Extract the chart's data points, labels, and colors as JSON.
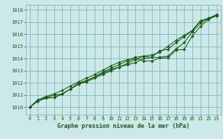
{
  "title": "Graphe pression niveau de la mer (hPa)",
  "bg_color": "#cce8e8",
  "grid_color": "#88bbbb",
  "line_color": "#1a5c1a",
  "marker_color": "#1a5c1a",
  "xlim": [
    -0.5,
    23.5
  ],
  "ylim": [
    1009.4,
    1018.4
  ],
  "xticks": [
    0,
    1,
    2,
    3,
    4,
    5,
    6,
    7,
    8,
    9,
    10,
    11,
    12,
    13,
    14,
    15,
    16,
    17,
    18,
    19,
    20,
    21,
    22,
    23
  ],
  "yticks": [
    1010,
    1011,
    1012,
    1013,
    1014,
    1015,
    1016,
    1017,
    1018
  ],
  "series": [
    [
      1010.0,
      1010.6,
      1010.8,
      1010.8,
      1011.1,
      1011.5,
      1011.9,
      1012.2,
      1012.5,
      1012.8,
      1013.1,
      1013.3,
      1013.5,
      1013.65,
      1014.0,
      1014.1,
      1014.65,
      1014.75,
      1015.3,
      1015.8,
      1016.3,
      1017.1,
      1017.25,
      1017.5
    ],
    [
      1010.0,
      1010.6,
      1010.8,
      1011.0,
      1011.1,
      1011.5,
      1012.0,
      1012.2,
      1012.5,
      1012.9,
      1013.2,
      1013.5,
      1013.8,
      1014.0,
      1013.8,
      1013.8,
      1014.05,
      1014.05,
      1014.7,
      1014.75,
      1015.85,
      1016.65,
      1017.2,
      1017.55
    ],
    [
      1010.0,
      1010.5,
      1010.75,
      1010.8,
      1011.1,
      1011.5,
      1011.9,
      1012.1,
      1012.4,
      1012.7,
      1013.0,
      1013.3,
      1013.6,
      1013.9,
      1014.2,
      1014.3,
      1014.5,
      1015.0,
      1015.5,
      1015.9,
      1016.3,
      1017.1,
      1017.3,
      1017.6
    ],
    [
      1010.0,
      1010.6,
      1010.9,
      1011.1,
      1011.4,
      1011.75,
      1012.1,
      1012.4,
      1012.7,
      1013.05,
      1013.4,
      1013.7,
      1013.9,
      1014.1,
      1014.2,
      1014.1,
      1014.1,
      1014.2,
      1014.8,
      1015.3,
      1016.2,
      1016.9,
      1017.3,
      1017.6
    ]
  ]
}
